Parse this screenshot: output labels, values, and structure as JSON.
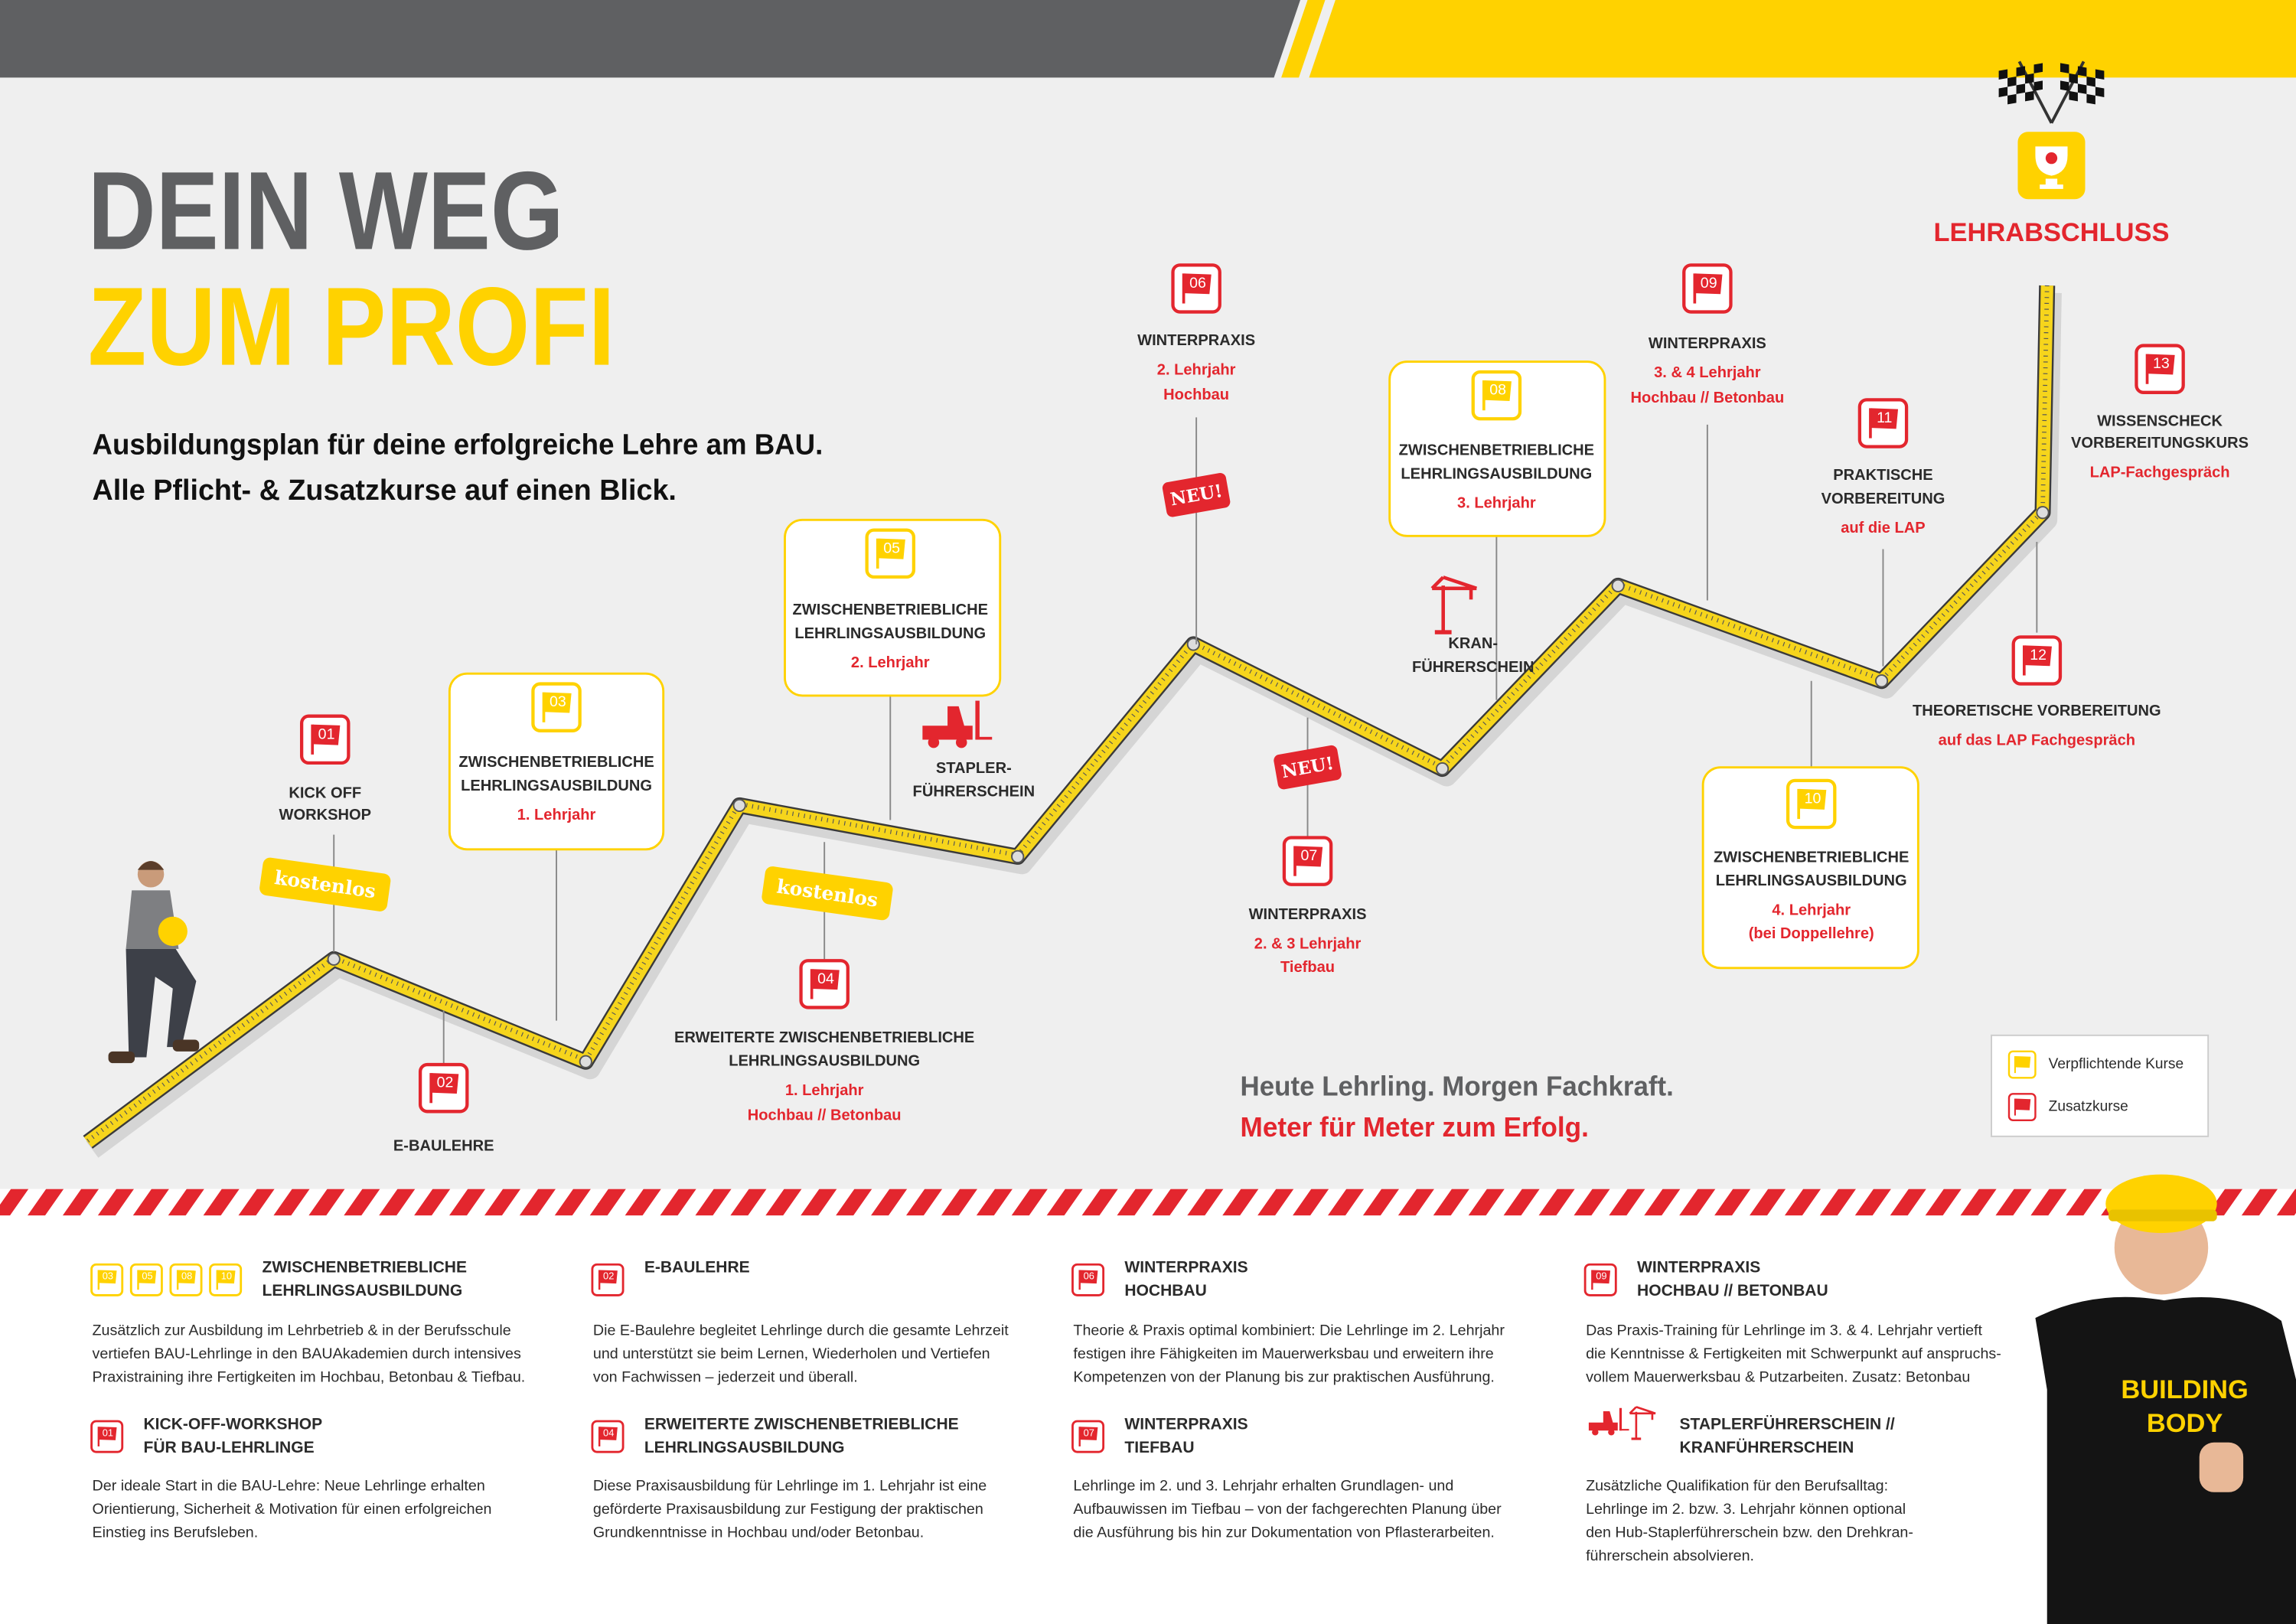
{
  "header": {
    "title": [
      "DEIN WEG",
      "ZUM PROFI"
    ],
    "subtitle": [
      "Ausbildungsplan für deine erfolgreiche Lehre am BAU.",
      "Alle Pflicht- & Zusatzkurse auf einen Blick."
    ]
  },
  "finish": "LEHRABSCHLUSS",
  "milestones": [
    {
      "number": "01",
      "title": [
        "KICK OFF",
        "WORKSHOP"
      ]
    },
    {
      "number": "02",
      "title": [
        "E-BAULEHRE"
      ]
    },
    {
      "number": "03",
      "title": [
        "ZWISCHENBETRIEBLICHE",
        "LEHRLINGSAUSBILDUNG"
      ],
      "detail": [
        "1. Lehrjahr"
      ]
    },
    {
      "number": "04",
      "title": [
        "ERWEITERTE ZWISCHENBETRIEBLICHE",
        "LEHRLINGSAUSBILDUNG"
      ],
      "detail": [
        "1. Lehrjahr",
        "Hochbau // Betonbau"
      ]
    },
    {
      "number": "05",
      "title": [
        "ZWISCHENBETRIEBLICHE",
        "LEHRLINGSAUSBILDUNG"
      ],
      "detail": [
        "2. Lehrjahr"
      ]
    },
    {
      "number": "06",
      "title": [
        "WINTERPRAXIS"
      ],
      "detail": [
        "2. Lehrjahr",
        "Hochbau"
      ]
    },
    {
      "number": "07",
      "title": [
        "WINTERPRAXIS"
      ],
      "detail": [
        "2. & 3 Lehrjahr",
        "Tiefbau"
      ]
    },
    {
      "number": "08",
      "title": [
        "ZWISCHENBETRIEBLICHE",
        "LEHRLINGSAUSBILDUNG"
      ],
      "detail": [
        "3. Lehrjahr"
      ]
    },
    {
      "number": "09",
      "title": [
        "WINTERPRAXIS"
      ],
      "detail": [
        "3. & 4 Lehrjahr",
        "Hochbau // Betonbau"
      ]
    },
    {
      "number": "10",
      "title": [
        "ZWISCHENBETRIEBLICHE",
        "LEHRLINGSAUSBILDUNG"
      ],
      "detail": [
        "4. Lehrjahr",
        "(bei Doppellehre)"
      ]
    },
    {
      "number": "11",
      "title": [
        "PRAKTISCHE",
        "VORBEREITUNG"
      ],
      "detail": [
        "auf die LAP"
      ]
    },
    {
      "number": "12",
      "title": [
        "THEORETISCHE VORBEREITUNG"
      ],
      "detail": [
        "auf das LAP Fachgespräch"
      ]
    },
    {
      "number": "13",
      "title": [
        "WISSENSCHECK",
        "VORBEREITUNGSKURS"
      ],
      "detail": [
        "LAP-Fachgespräch"
      ]
    }
  ],
  "badges": {
    "free": [
      "kostenlos",
      "kostenlos"
    ],
    "new": [
      "NEU!",
      "NEU!"
    ]
  },
  "licenses": [
    [
      "STAPLER-",
      "FÜHRERSCHEIN"
    ],
    [
      "KRAN-",
      "FÜHRERSCHEIN"
    ]
  ],
  "slogan": [
    "Heute Lehrling. Morgen Fachkraft.",
    "Meter für Meter zum Erfolg."
  ],
  "legend": [
    "Verpflichtende Kurse",
    "Zusatzkurse"
  ],
  "sections": [
    {
      "icons": [
        "03",
        "05",
        "08",
        "10"
      ],
      "heading": [
        "ZWISCHENBETRIEBLICHE",
        "LEHRLINGSAUSBILDUNG"
      ],
      "body": [
        "Zusätzlich zur Ausbildung im Lehrbetrieb & in der Berufsschule",
        "vertiefen BAU-Lehrlinge in den BAUAkademien durch intensives",
        "Praxistraining ihre Fertigkeiten im Hochbau, Betonbau & Tiefbau."
      ]
    },
    {
      "icons": [
        "01"
      ],
      "heading": [
        "KICK-OFF-WORKSHOP",
        "FÜR BAU-LEHRLINGE"
      ],
      "body": [
        "Der ideale Start in die BAU-Lehre: Neue Lehrlinge erhalten",
        "Orientierung, Sicherheit & Motivation für einen erfolgreichen",
        "Einstieg ins Berufsleben."
      ]
    },
    {
      "icons": [
        "02"
      ],
      "heading": [
        "E-BAULEHRE"
      ],
      "body": [
        "Die E-Baulehre begleitet Lehrlinge durch die gesamte Lehrzeit",
        "und unterstützt sie beim Lernen, Wiederholen und Vertiefen",
        "von Fachwissen – jederzeit und überall."
      ]
    },
    {
      "icons": [
        "04"
      ],
      "heading": [
        "ERWEITERTE ZWISCHENBETRIEBLICHE",
        "LEHRLINGSAUSBILDUNG"
      ],
      "body": [
        "Diese Praxisausbildung  für Lehrlinge im 1. Lehrjahr ist eine",
        "geförderte Praxisausbildung zur Festigung der praktischen",
        "Grundkenntnisse in Hochbau und/oder Betonbau."
      ]
    },
    {
      "icons": [
        "06"
      ],
      "heading": [
        "WINTERPRAXIS",
        "HOCHBAU"
      ],
      "body": [
        "Theorie & Praxis optimal kombiniert: Die Lehrlinge im 2. Lehrjahr",
        "festigen ihre Fähigkeiten im Mauerwerksbau und erweitern ihre",
        "Kompetenzen von der Planung bis zur praktischen Ausführung."
      ]
    },
    {
      "icons": [
        "07"
      ],
      "heading": [
        "WINTERPRAXIS",
        "TIEFBAU"
      ],
      "body": [
        "Lehrlinge im 2. und 3. Lehrjahr erhalten Grundlagen- und",
        "Aufbauwissen im Tiefbau – von der fachgerechten Planung über",
        "die Ausführung bis hin zur Dokumentation von Pflasterarbeiten."
      ]
    },
    {
      "icons": [
        "09"
      ],
      "heading": [
        "WINTERPRAXIS",
        "HOCHBAU // BETONBAU"
      ],
      "body": [
        "Das Praxis-Training für Lehrlinge im 3. & 4. Lehrjahr vertieft",
        "die Kenntnisse & Fertigkeiten mit Schwerpunkt auf anspruchs-",
        "vollem Mauerwerksbau & Putzarbeiten. Zusatz: Betonbau"
      ]
    },
    {
      "heading": [
        "STAPLERFÜHRERSCHEIN //",
        "KRANFÜHRERSCHEIN"
      ],
      "body": [
        "Zusätzliche Qualifikation für den Berufsalltag:",
        "Lehrlinge im 2. bzw. 3. Lehrjahr können optional",
        "den Hub-Staplerführerschein bzw. den Drehkran-",
        "führerschein absolvieren."
      ]
    }
  ],
  "shirt": [
    "BUILDING",
    "BODY"
  ]
}
